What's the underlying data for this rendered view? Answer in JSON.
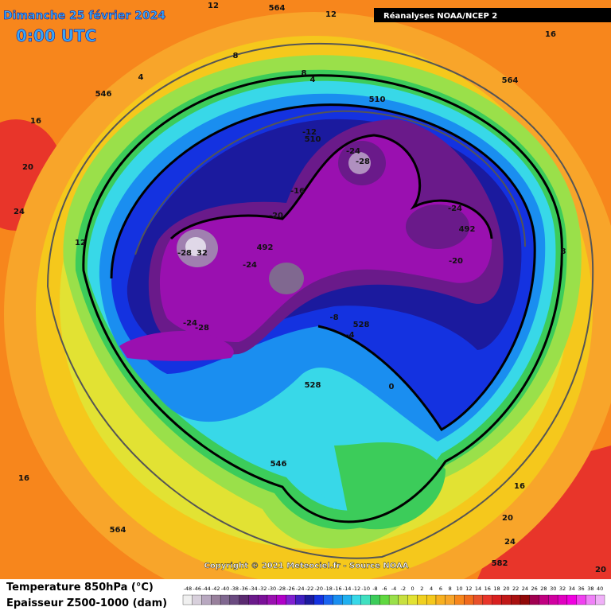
{
  "header": {
    "date": "Dimanche 25 février 2024",
    "time": "0:00 UTC",
    "source": "Réanalyses NOAA/NCEP 2"
  },
  "copyright": "Copyright © 2021 Meteociel.fr - Source NOAA",
  "legend": {
    "temperature": "Temperature 850hPa (°C)",
    "thickness": "Epaisseur Z500-1000 (dam)",
    "scale": [
      -48,
      -46,
      -44,
      -42,
      -40,
      -38,
      -36,
      -34,
      -32,
      -30,
      -28,
      -26,
      -24,
      -22,
      -20,
      -18,
      -16,
      -14,
      -12,
      -10,
      -8,
      -6,
      -4,
      -2,
      0,
      2,
      4,
      6,
      8,
      10,
      12,
      14,
      16,
      18,
      20,
      22,
      24,
      26,
      28,
      30,
      32,
      34,
      36,
      38,
      40
    ]
  },
  "labels": [
    12,
    564,
    12,
    16,
    8,
    4,
    8,
    4,
    546,
    16,
    564,
    510,
    -12,
    510,
    -24,
    -28,
    -16,
    20,
    24,
    -20,
    -24,
    492,
    12,
    492,
    -24,
    -20,
    8,
    -24,
    -28,
    -8,
    528,
    -4,
    528,
    0,
    546,
    16,
    16,
    564,
    20,
    24,
    582,
    20,
    -28,
    32
  ]
}
